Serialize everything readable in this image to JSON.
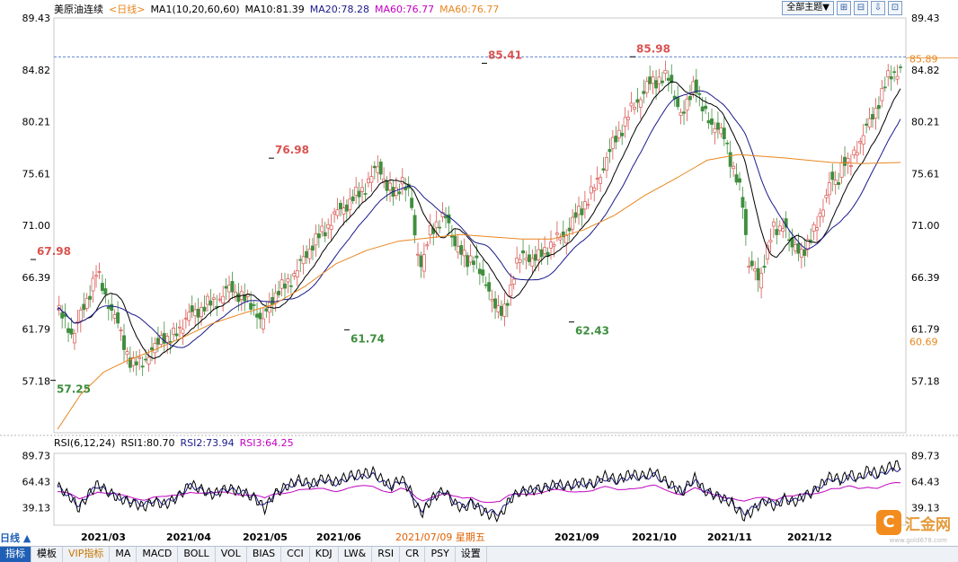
{
  "legend": {
    "name": "美原油连续",
    "period": "<日线>",
    "ma_group": "MA1(10,20,60,60)",
    "ma10": "MA10:81.39",
    "ma20": "MA20:78.28",
    "ma60a": "MA60:76.77",
    "ma60b": "MA60:76.77"
  },
  "controls": {
    "theme_button": "全部主题▼",
    "icons": [
      "expand-icon",
      "shrink-icon",
      "export-icon",
      "restore-icon"
    ]
  },
  "rsi_legend": {
    "name": "RSI(6,12,24)",
    "rsi1": "RSI1:80.70",
    "rsi2": "RSI2:73.94",
    "rsi3": "RSI3:64.25"
  },
  "period_button": "日线 ▲",
  "cursor_date": "2021/07/09 星期五",
  "tabs": [
    "指标",
    "模板",
    "VIP指标",
    "MA",
    "MACD",
    "BOLL",
    "VOL",
    "BIAS",
    "CCI",
    "KDJ",
    "LW&",
    "RSI",
    "CR",
    "PSY",
    "设置"
  ],
  "logo": {
    "text": "汇金网",
    "url": "www.gold678.com"
  },
  "colors": {
    "up": "#d9534f",
    "down": "#3f8f3f",
    "ma10": "#000000",
    "ma20": "#1a1a8c",
    "ma60": "#e8861e",
    "rsi1": "#000000",
    "rsi2": "#1a1a8c",
    "rsi3": "#c000c0",
    "last_price": "#e8861e",
    "high_line": "#2a5bbf"
  },
  "chart_data": {
    "type": "candlestick",
    "title": "美原油连续",
    "price_axis": {
      "ticks": [
        89.43,
        84.82,
        80.21,
        75.61,
        71.0,
        66.39,
        61.79,
        57.18
      ],
      "ylim": [
        52.6,
        89.43
      ],
      "last_price": 85.89,
      "ma60_tag": 60.69,
      "max_line": 85.98
    },
    "rsi_axis": {
      "ticks": [
        89.73,
        64.43,
        39.13
      ],
      "ylim": [
        22,
        92
      ]
    },
    "x_labels": [
      "2021/03",
      "2021/04",
      "2021/05",
      "2021/06",
      "2021/09",
      "2021/10",
      "2021/11",
      "2021/12"
    ],
    "annotations": [
      {
        "label": "67.98",
        "kind": "high"
      },
      {
        "label": "57.25",
        "kind": "low"
      },
      {
        "label": "76.98",
        "kind": "high"
      },
      {
        "label": "61.74",
        "kind": "low"
      },
      {
        "label": "85.41",
        "kind": "high"
      },
      {
        "label": "62.43",
        "kind": "low"
      },
      {
        "label": "85.98",
        "kind": "high"
      }
    ],
    "close_path": [
      [
        0,
        63.5
      ],
      [
        10,
        61.3
      ],
      [
        18,
        64.0
      ],
      [
        25,
        66.8
      ],
      [
        32,
        64.5
      ],
      [
        40,
        61.8
      ],
      [
        48,
        58.5
      ],
      [
        55,
        59.0
      ],
      [
        62,
        59.8
      ],
      [
        68,
        61.5
      ],
      [
        72,
        60.5
      ],
      [
        78,
        61.8
      ],
      [
        85,
        63.0
      ],
      [
        95,
        63.8
      ],
      [
        105,
        64.5
      ],
      [
        112,
        65.5
      ],
      [
        120,
        64.5
      ],
      [
        128,
        63.8
      ],
      [
        132,
        62.0
      ],
      [
        138,
        64.5
      ],
      [
        146,
        65.5
      ],
      [
        155,
        67.0
      ],
      [
        163,
        69.0
      ],
      [
        172,
        70.5
      ],
      [
        180,
        72.0
      ],
      [
        188,
        73.0
      ],
      [
        196,
        74.0
      ],
      [
        204,
        75.5
      ],
      [
        208,
        76.3
      ],
      [
        213,
        74.5
      ],
      [
        218,
        73.5
      ],
      [
        223,
        75.2
      ],
      [
        228,
        73.5
      ],
      [
        232,
        69.0
      ],
      [
        236,
        67.5
      ],
      [
        240,
        70.0
      ],
      [
        245,
        71.2
      ],
      [
        250,
        72.0
      ],
      [
        255,
        70.0
      ],
      [
        260,
        69.0
      ],
      [
        265,
        67.5
      ],
      [
        270,
        68.5
      ],
      [
        275,
        66.0
      ],
      [
        280,
        65.0
      ],
      [
        285,
        63.5
      ],
      [
        288,
        62.8
      ],
      [
        292,
        65.0
      ],
      [
        296,
        67.5
      ],
      [
        302,
        68.3
      ],
      [
        310,
        68.0
      ],
      [
        318,
        69.2
      ],
      [
        328,
        70.2
      ],
      [
        334,
        71.5
      ],
      [
        340,
        72.8
      ],
      [
        348,
        74.5
      ],
      [
        355,
        77.0
      ],
      [
        362,
        79.0
      ],
      [
        370,
        81.0
      ],
      [
        376,
        82.3
      ],
      [
        382,
        83.5
      ],
      [
        388,
        84.0
      ],
      [
        392,
        84.2
      ],
      [
        396,
        83.8
      ],
      [
        400,
        82.3
      ],
      [
        404,
        80.5
      ],
      [
        408,
        82.0
      ],
      [
        412,
        84.2
      ],
      [
        416,
        81.5
      ],
      [
        420,
        80.5
      ],
      [
        426,
        79.8
      ],
      [
        432,
        78.5
      ],
      [
        436,
        76.5
      ],
      [
        440,
        74.8
      ],
      [
        444,
        72.0
      ],
      [
        446,
        68.0
      ],
      [
        450,
        67.5
      ],
      [
        454,
        65.5
      ],
      [
        458,
        68.5
      ],
      [
        462,
        71.0
      ],
      [
        466,
        70.0
      ],
      [
        470,
        71.5
      ],
      [
        475,
        69.0
      ],
      [
        480,
        68.5
      ],
      [
        485,
        69.5
      ],
      [
        490,
        70.5
      ],
      [
        494,
        72.5
      ],
      [
        500,
        75.0
      ],
      [
        504,
        74.5
      ],
      [
        508,
        77.2
      ],
      [
        512,
        76.0
      ],
      [
        517,
        78.0
      ],
      [
        522,
        79.5
      ],
      [
        526,
        80.2
      ],
      [
        532,
        82.5
      ],
      [
        536,
        83.8
      ],
      [
        540,
        84.5
      ],
      [
        545,
        85.0
      ]
    ],
    "ma60_path": [
      [
        0,
        52.9
      ],
      [
        15,
        56.0
      ],
      [
        30,
        58.0
      ],
      [
        45,
        59.0
      ],
      [
        60,
        59.8
      ],
      [
        80,
        61.0
      ],
      [
        100,
        62.3
      ],
      [
        120,
        63.2
      ],
      [
        140,
        64.0
      ],
      [
        160,
        65.6
      ],
      [
        180,
        67.6
      ],
      [
        200,
        68.8
      ],
      [
        220,
        69.6
      ],
      [
        240,
        69.9
      ],
      [
        260,
        70.2
      ],
      [
        280,
        70.0
      ],
      [
        300,
        69.8
      ],
      [
        320,
        69.8
      ],
      [
        340,
        70.6
      ],
      [
        360,
        71.9
      ],
      [
        380,
        73.7
      ],
      [
        400,
        75.2
      ],
      [
        420,
        76.8
      ],
      [
        440,
        77.3
      ],
      [
        470,
        77.0
      ],
      [
        500,
        76.6
      ],
      [
        520,
        76.5
      ],
      [
        545,
        76.6
      ]
    ],
    "rsi_path": [
      [
        0,
        60
      ],
      [
        8,
        50
      ],
      [
        14,
        38
      ],
      [
        20,
        52
      ],
      [
        26,
        62
      ],
      [
        32,
        55
      ],
      [
        40,
        48
      ],
      [
        48,
        44
      ],
      [
        56,
        40
      ],
      [
        62,
        45
      ],
      [
        70,
        42
      ],
      [
        78,
        50
      ],
      [
        86,
        62
      ],
      [
        94,
        56
      ],
      [
        100,
        52
      ],
      [
        110,
        58
      ],
      [
        120,
        54
      ],
      [
        128,
        48
      ],
      [
        134,
        38
      ],
      [
        140,
        52
      ],
      [
        148,
        60
      ],
      [
        156,
        66
      ],
      [
        164,
        62
      ],
      [
        172,
        68
      ],
      [
        180,
        64
      ],
      [
        188,
        70
      ],
      [
        196,
        72
      ],
      [
        204,
        74
      ],
      [
        210,
        66
      ],
      [
        216,
        60
      ],
      [
        222,
        68
      ],
      [
        228,
        56
      ],
      [
        232,
        40
      ],
      [
        236,
        34
      ],
      [
        242,
        48
      ],
      [
        250,
        56
      ],
      [
        256,
        44
      ],
      [
        262,
        38
      ],
      [
        268,
        44
      ],
      [
        274,
        36
      ],
      [
        280,
        32
      ],
      [
        286,
        30
      ],
      [
        292,
        46
      ],
      [
        298,
        54
      ],
      [
        306,
        56
      ],
      [
        314,
        58
      ],
      [
        322,
        62
      ],
      [
        330,
        60
      ],
      [
        338,
        64
      ],
      [
        346,
        62
      ],
      [
        354,
        70
      ],
      [
        362,
        66
      ],
      [
        370,
        72
      ],
      [
        378,
        70
      ],
      [
        386,
        74
      ],
      [
        392,
        66
      ],
      [
        398,
        60
      ],
      [
        404,
        54
      ],
      [
        408,
        62
      ],
      [
        412,
        68
      ],
      [
        418,
        56
      ],
      [
        424,
        52
      ],
      [
        430,
        48
      ],
      [
        436,
        44
      ],
      [
        440,
        36
      ],
      [
        444,
        30
      ],
      [
        448,
        34
      ],
      [
        452,
        40
      ],
      [
        458,
        46
      ],
      [
        464,
        40
      ],
      [
        470,
        48
      ],
      [
        476,
        44
      ],
      [
        482,
        50
      ],
      [
        488,
        54
      ],
      [
        494,
        62
      ],
      [
        500,
        70
      ],
      [
        506,
        66
      ],
      [
        512,
        72
      ],
      [
        518,
        68
      ],
      [
        524,
        76
      ],
      [
        530,
        72
      ],
      [
        536,
        78
      ],
      [
        542,
        80.7
      ]
    ]
  }
}
